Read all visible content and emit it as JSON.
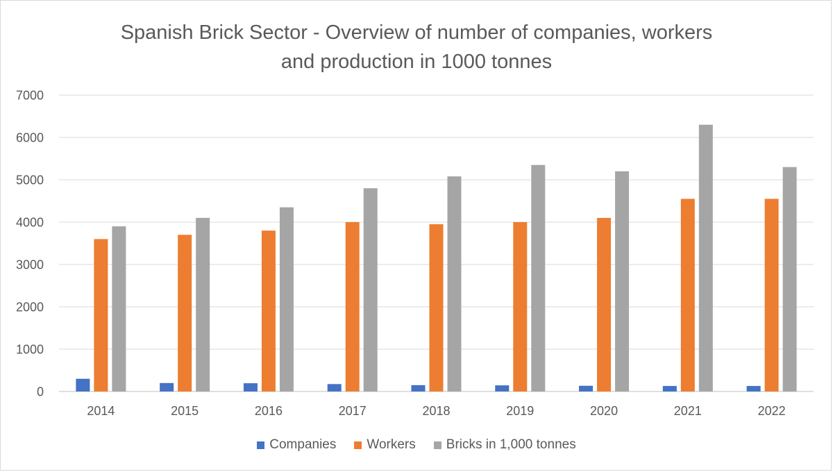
{
  "chart_data": {
    "type": "bar",
    "title": "Spanish Brick Sector - Overview of number of companies, workers and production in 1000 tonnes",
    "title_lines": [
      "Spanish Brick Sector - Overview of number of companies, workers",
      "and production in 1000 tonnes"
    ],
    "categories": [
      "2014",
      "2015",
      "2016",
      "2017",
      "2018",
      "2019",
      "2020",
      "2021",
      "2022"
    ],
    "series": [
      {
        "name": "Companies",
        "color": "#4472c4",
        "values": [
          300,
          200,
          195,
          175,
          150,
          145,
          135,
          130,
          130
        ]
      },
      {
        "name": "Workers",
        "color": "#ed7d31",
        "values": [
          3600,
          3700,
          3800,
          4000,
          3950,
          4000,
          4100,
          4550,
          4550
        ]
      },
      {
        "name": "Bricks in 1,000 tonnes",
        "color": "#a5a5a5",
        "values": [
          3900,
          4100,
          4350,
          4800,
          5080,
          5350,
          5200,
          6300,
          5300
        ]
      }
    ],
    "ylim": [
      0,
      7000
    ],
    "yticks": [
      "0",
      "1000",
      "2000",
      "3000",
      "4000",
      "5000",
      "6000",
      "7000"
    ],
    "xlabel": "",
    "ylabel": "",
    "grid": true,
    "legend_position": "bottom"
  }
}
